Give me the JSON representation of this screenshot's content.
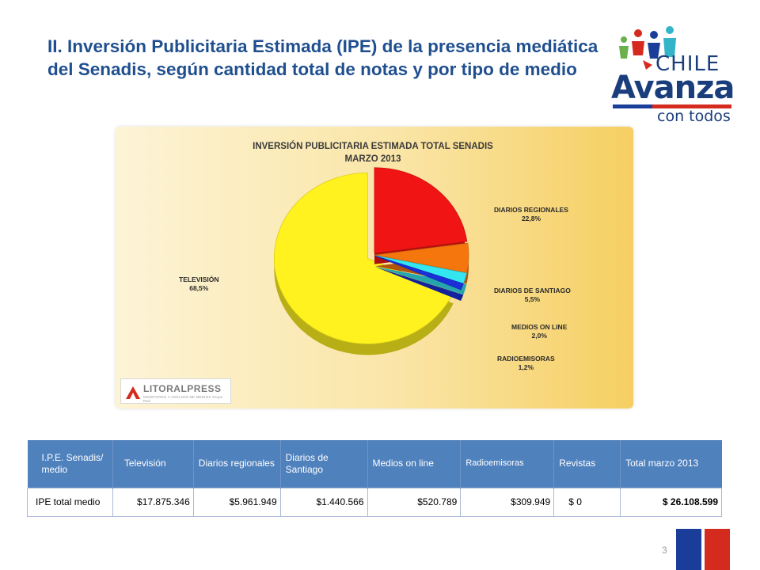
{
  "slide": {
    "title": "II. Inversión Publicitaria Estimada (IPE) de la presencia mediática del Senadis, según cantidad total de notas y por tipo de medio",
    "page_number": "3"
  },
  "logo": {
    "line1": "CHILE",
    "line2": "Avanza",
    "line3": "con todos"
  },
  "chart_data": {
    "type": "pie",
    "title": "INVERSIÓN PUBLICITARIA ESTIMADA TOTAL SENADIS",
    "subtitle": "MARZO 2013",
    "labels": [
      "TELEVISIÓN",
      "DIARIOS REGIONALES",
      "DIARIOS DE SANTIAGO",
      "MEDIOS ON LINE",
      "RADIOEMISORAS"
    ],
    "values": [
      68.5,
      22.8,
      5.5,
      2.0,
      1.2
    ],
    "value_labels": [
      "68,5%",
      "22,8%",
      "5,5%",
      "2,0%",
      "1,2%"
    ],
    "colors": [
      "#fff21f",
      "#f01414",
      "#f5760c",
      "#33e6f0",
      "#1b2fd8"
    ],
    "exploded": "TELEVISIÓN",
    "style": "3D",
    "source_logo": "LITORALPRESS",
    "source_tagline": "MONITOREO Y ANÁLISIS DE MEDIOS Grupo Red"
  },
  "table": {
    "headers": [
      "I.P.E. Senadis/ medio",
      "Televisión",
      "Diarios regionales",
      "Diarios de Santiago",
      "Medios on line",
      "Radioemisoras",
      "Revistas",
      "Total marzo 2013"
    ],
    "row_label": "IPE total medio",
    "values": [
      "$17.875.346",
      "$5.961.949",
      "$1.440.566",
      "$520.789",
      "$309.949",
      "$ 0",
      "$ 26.108.599"
    ]
  },
  "colors": {
    "title": "#1f4f8f",
    "table_header": "#4f81bd",
    "flag_blue": "#1a3d9a",
    "flag_red": "#d52b1e"
  }
}
